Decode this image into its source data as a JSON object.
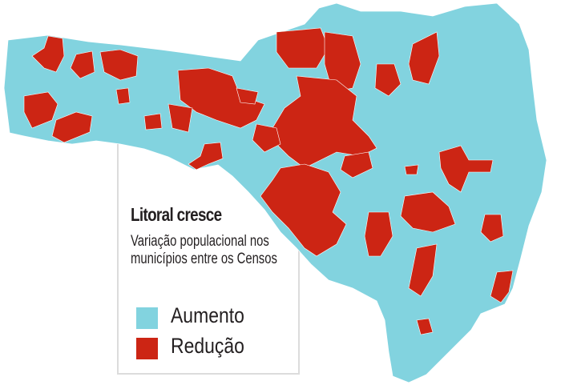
{
  "legend": {
    "title": "Litoral cresce",
    "subtitle": "Variação populacional nos municípios entre os Censos",
    "items": [
      {
        "label": "Aumento",
        "color": "#82d3df"
      },
      {
        "label": "Redução",
        "color": "#cc2514"
      }
    ]
  },
  "colors": {
    "increase": "#82d3df",
    "decrease": "#cc2514",
    "border": "#ffffff"
  }
}
